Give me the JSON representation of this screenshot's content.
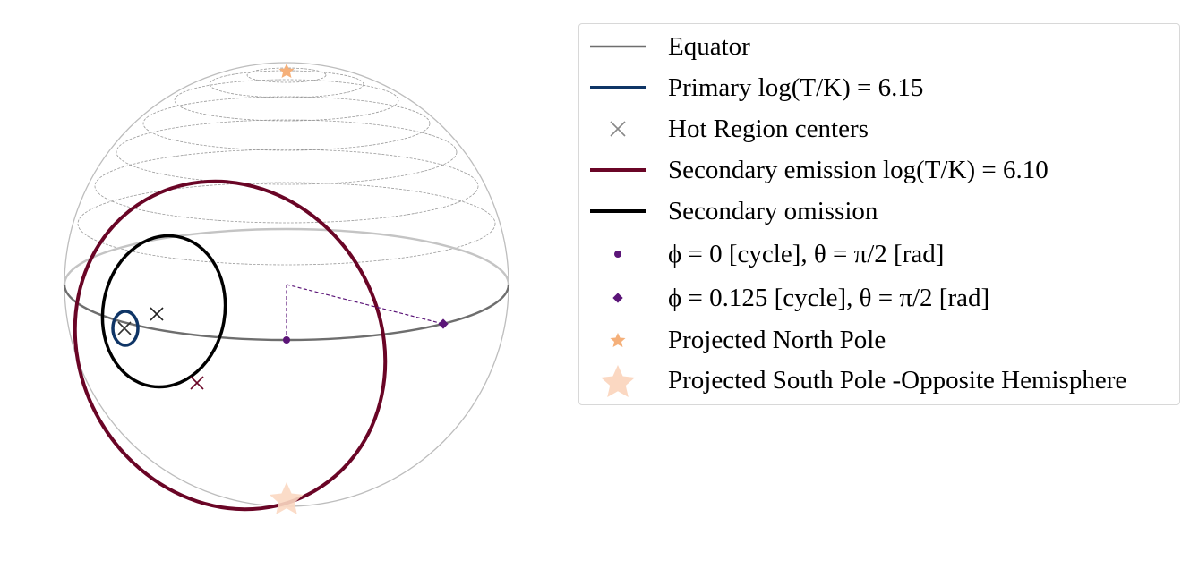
{
  "colors": {
    "equator": "#6e6e6e",
    "primary": "#0f3566",
    "secondary_emission": "#6a0526",
    "secondary_omission": "#000000",
    "marker": "#5b1578",
    "north_pole": "#f5b07a",
    "south_pole": "#fbd8c2",
    "sphere_outline": "#bdbdbd",
    "latitude_lines": "#9a9a9a"
  },
  "legend": {
    "items": [
      {
        "id": "equator",
        "label": "Equator",
        "symbol": "line-gray"
      },
      {
        "id": "primary",
        "label": "Primary log(T/K) = 6.15",
        "symbol": "line-blue"
      },
      {
        "id": "hot-centers",
        "label": "Hot Region centers",
        "symbol": "x-gray"
      },
      {
        "id": "secondary-emission",
        "label": "Secondary emission log(T/K) = 6.10",
        "symbol": "line-maroon"
      },
      {
        "id": "secondary-omission",
        "label": "Secondary omission",
        "symbol": "line-black"
      },
      {
        "id": "phi0",
        "label": "ϕ = 0 [cycle], θ = π/2 [rad]",
        "symbol": "dot-purple"
      },
      {
        "id": "phi0125",
        "label": "ϕ = 0.125 [cycle], θ = π/2 [rad]",
        "symbol": "diamond-purple"
      },
      {
        "id": "north-pole",
        "label": "Projected North Pole",
        "symbol": "star-small"
      },
      {
        "id": "south-pole",
        "label": "Projected South Pole  -Opposite Hemisphere",
        "symbol": "star-large"
      }
    ]
  }
}
